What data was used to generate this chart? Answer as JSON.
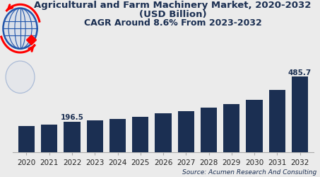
{
  "title_line1": "Agricultural and Farm Machinery Market, 2020-2032",
  "title_line2": "(USD Billion)",
  "title_line3": "CAGR Around 8.6% From 2023-2032",
  "source": "Source: Acumen Research And Consulting",
  "years": [
    2020,
    2021,
    2022,
    2023,
    2024,
    2025,
    2026,
    2027,
    2028,
    2029,
    2030,
    2031,
    2032
  ],
  "values": [
    168.0,
    178.0,
    196.5,
    204.0,
    215.0,
    228.0,
    248.0,
    265.0,
    285.0,
    307.0,
    335.0,
    397.0,
    485.7
  ],
  "bar_color": "#1b2f52",
  "background_color": "#ebebeb",
  "label_2022": "196.5",
  "label_2032": "485.7",
  "label_fontsize": 7.5,
  "title_fontsize_1": 9.5,
  "title_fontsize_3": 9.0,
  "tick_fontsize": 7.5,
  "source_fontsize": 6.5,
  "ylim_max": 570
}
